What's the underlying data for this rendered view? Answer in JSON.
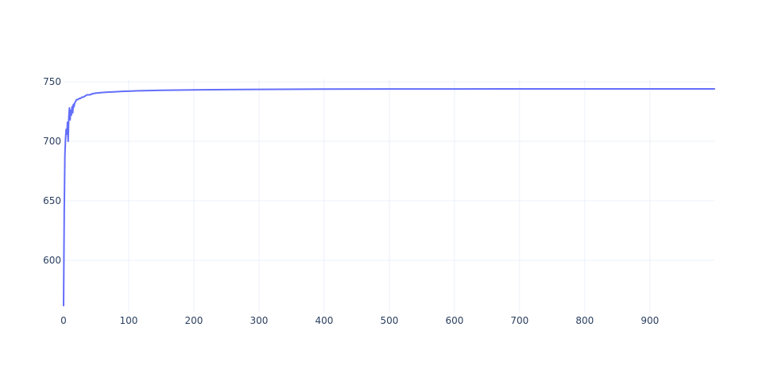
{
  "chart_data": {
    "type": "line",
    "title": "",
    "xlabel": "",
    "ylabel": "",
    "xlim": [
      0,
      999
    ],
    "ylim": [
      556,
      752
    ],
    "grid": true,
    "legend": "none",
    "x_ticks": [
      0,
      100,
      200,
      300,
      400,
      500,
      600,
      700,
      800,
      900
    ],
    "y_ticks": [
      600,
      650,
      700,
      750
    ],
    "series": [
      {
        "color": "#636efa",
        "x": [
          0,
          1,
          2,
          3,
          4,
          5,
          6,
          7,
          8,
          9,
          10,
          11,
          12,
          13,
          14,
          15,
          16,
          17,
          18,
          19,
          20,
          22,
          24,
          26,
          28,
          30,
          33,
          36,
          40,
          45,
          50,
          60,
          70,
          80,
          90,
          100,
          115,
          130,
          150,
          175,
          200,
          250,
          300,
          400,
          500,
          600,
          700,
          800,
          900,
          999
        ],
        "y": [
          562,
          640,
          688,
          702,
          710,
          706,
          716,
          700,
          720,
          728,
          718,
          726,
          722,
          729,
          724,
          731,
          729,
          732,
          733,
          734,
          735,
          735,
          736,
          736,
          737,
          737,
          738,
          739,
          739,
          740,
          740.5,
          741,
          741.3,
          741.6,
          741.9,
          742.1,
          742.4,
          742.6,
          742.8,
          743.0,
          743.2,
          743.4,
          743.6,
          743.8,
          743.9,
          743.9,
          744.0,
          744.0,
          744.0,
          744.0
        ]
      }
    ]
  }
}
